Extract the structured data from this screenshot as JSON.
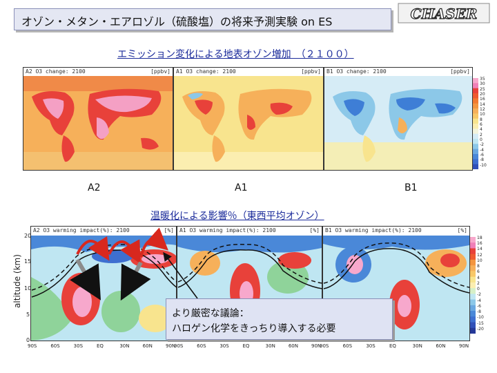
{
  "slide": {
    "title": "オゾン・メタン・エアロゾル（硫酸塩）の将来予測実験 on ES",
    "logo_text": "CHASER",
    "section1": "エミッション変化による地表オゾン増加　（２１００）",
    "section2": "温暖化による影響％（東西平均オゾン）",
    "callout_line1": "より厳密な議論：",
    "callout_line2": "ハロゲン化学をきっちり導入する必要"
  },
  "maps": [
    {
      "scenario": "A2",
      "header": "A2  O3  change: 2100",
      "unit": "[ppbv]"
    },
    {
      "scenario": "A1",
      "header": "A1  O3  change: 2100",
      "unit": "[ppbv]"
    },
    {
      "scenario": "B1",
      "header": "B1  O3  change: 2100",
      "unit": "[ppbv]"
    }
  ],
  "map_colorbar": [
    "35",
    "30",
    "25",
    "20",
    "16",
    "14",
    "12",
    "10",
    "8",
    "6",
    "4",
    "2",
    "0",
    "-2",
    "-4",
    "-6",
    "-8",
    "-10"
  ],
  "zonal": [
    {
      "header": "A2  O3  warming impact(%): 2100",
      "unit": "[%]"
    },
    {
      "header": "A1  O3  warming impact(%): 2100",
      "unit": "[%]"
    },
    {
      "header": "B1  O3  warming impact(%): 2100",
      "unit": "[%]"
    }
  ],
  "zonal_colorbar": [
    "18",
    "16",
    "14",
    "12",
    "10",
    "8",
    "6",
    "4",
    "2",
    "0",
    "-2",
    "-4",
    "-6",
    "-8",
    "-10",
    "-15",
    "-20"
  ],
  "yaxis": {
    "label": "altitude (km)",
    "ticks": [
      "20",
      "15",
      "10",
      "5",
      "0"
    ]
  },
  "xaxis": {
    "ticks": [
      "90S",
      "60S",
      "30S",
      "EQ",
      "30N",
      "60N",
      "90N"
    ]
  }
}
